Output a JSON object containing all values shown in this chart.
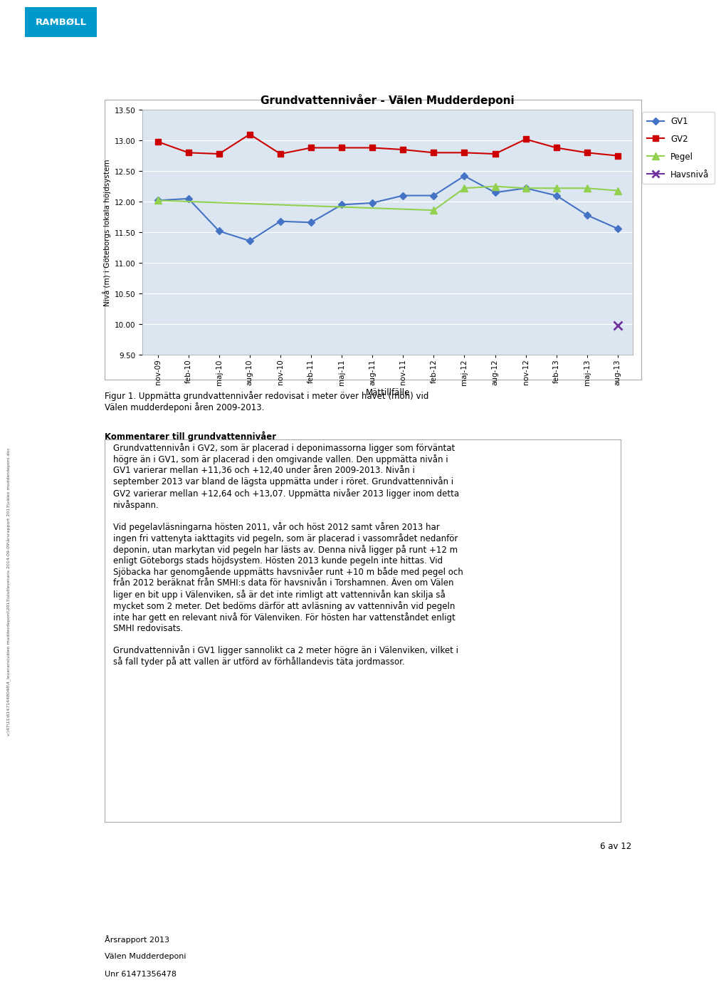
{
  "title": "Grundvattennivåer - Välen Mudderdeponi",
  "xlabel": "Mättillfälle",
  "ylabel": "Nivå (m) i Göteborgs lokala höjdsystem",
  "ylim": [
    9.5,
    13.5
  ],
  "yticks": [
    9.5,
    10.0,
    10.5,
    11.0,
    11.5,
    12.0,
    12.5,
    13.0,
    13.5
  ],
  "plot_bg": "#dce6f1",
  "x_labels": [
    "nov-09",
    "feb-10",
    "maj-10",
    "aug-10",
    "nov-10",
    "feb-11",
    "maj-11",
    "aug-11",
    "nov-11",
    "feb-12",
    "maj-12",
    "aug-12",
    "nov-12",
    "feb-13",
    "maj-13",
    "aug-13"
  ],
  "GV1_x": [
    0,
    1,
    2,
    3,
    4,
    5,
    6,
    7,
    8,
    9,
    10,
    11,
    12,
    13,
    14,
    15
  ],
  "GV1_y": [
    12.02,
    12.05,
    11.52,
    11.36,
    11.68,
    11.66,
    11.95,
    11.98,
    12.1,
    12.1,
    12.42,
    12.15,
    12.22,
    12.1,
    11.78,
    11.56
  ],
  "GV1_color": "#4472C4",
  "GV1_label": "GV1",
  "GV2_x": [
    0,
    1,
    2,
    3,
    4,
    5,
    6,
    7,
    8,
    9,
    10,
    11,
    12,
    13,
    14,
    15
  ],
  "GV2_y": [
    12.98,
    12.8,
    12.78,
    13.1,
    12.78,
    12.88,
    12.88,
    12.88,
    12.85,
    12.8,
    12.8,
    12.78,
    13.02,
    12.88,
    12.8,
    12.75
  ],
  "GV2_color": "#CC0000",
  "GV2_label": "GV2",
  "Pegel_x": [
    0,
    9,
    10,
    11,
    12,
    13,
    14,
    15
  ],
  "Pegel_y": [
    12.02,
    11.86,
    12.22,
    12.25,
    12.22,
    12.22,
    12.22,
    12.18
  ],
  "Pegel_color": "#92D050",
  "Pegel_label": "Pegel",
  "Havsniva_x": [
    15
  ],
  "Havsniva_y": [
    9.98
  ],
  "Havsniva_color": "#7030A0",
  "Havsniva_label": "Havsnivå",
  "figur_caption": "Figur 1. Uppmätta grundvattennivåer redovisat i meter över havet (möh) vid\nVälen mudderdeponi åren 2009-2013.",
  "comment_header": "Kommentarer till grundvattennivåer",
  "comment_box_text": "Grundvattennivån i GV2, som är placerad i deponimassorna ligger som förväntat\nhögre än i GV1, som är placerad i den omgivande vallen. Den uppmätta nivån i\nGV1 varierar mellan +11,36 och +12,40 under åren 2009-2013. Nivån i\nseptember 2013 var bland de lägsta uppmätta under i röret. Grundvattennivån i\nGV2 varierar mellan +12,64 och +13,07. Uppmätta nivåer 2013 ligger inom detta\nnivåspann.\n\nVid pegelavläsningarna hösten 2011, vår och höst 2012 samt våren 2013 har\ningen fri vattenyta iakttagits vid pegeln, som är placerad i vassområdet nedanför\ndeponin, utan markytan vid pegeln har lästs av. Denna nivå ligger på runt +12 m\nenligt Göteborgs stads höjdsystem. Hösten 2013 kunde pegeln inte hittas. Vid\nSjöbacka har genomgående uppmätts havsnivåer runt +10 m både med pegel och\nfrån 2012 beräknat från SMHI:s data för havsnivån i Torshamnen. Även om Välen\nliger en bit upp i Välenviken, så är det inte rimligt att vattennivån kan skilja så\nmycket som 2 meter. Det bedöms därför att avläsning av vattennivån vid pegeln\ninte har gett en relevant nivå för Välenviken. För hösten har vattenståndet enligt\nSMHI redovisats.\n\nGrundvattennivån i GV1 ligger sannolikt ca 2 meter högre än i Välenviken, vilket i\nså fall tyder på att vallen är utförd av förhållandevis täta jordmassor.",
  "footer_line1": "Årsrapport 2013",
  "footer_line2": "Välen Mudderdeponi",
  "footer_line3": "Unr 61471356478",
  "page_number": "6 av 12",
  "side_text": "v:\\47\\11\\61471448048\\4_leverans\\välen mudderdeponi\\2013\\slutleverans 2014-09-09\\årsrapport 2013\\välen mudderdeponi.doc"
}
